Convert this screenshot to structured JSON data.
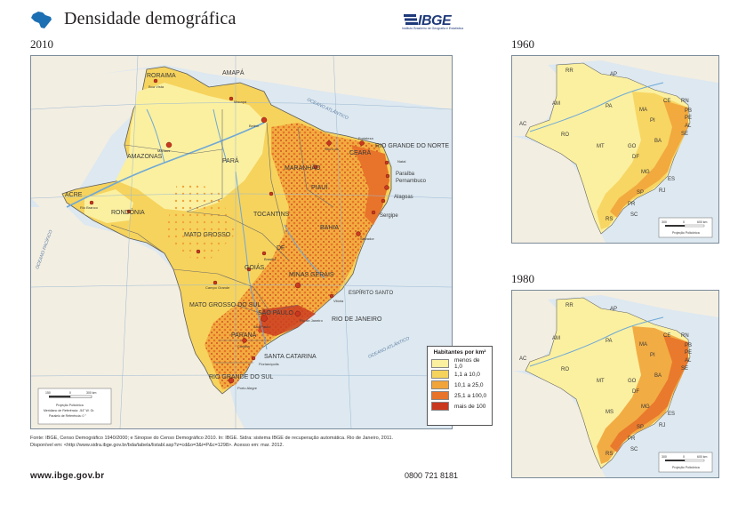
{
  "header": {
    "title": "Densidade demográfica",
    "logo_text": "IBGE",
    "logo_subtitle": "Instituto Brasileiro de Geografia e Estatística"
  },
  "main_map": {
    "year": "2010",
    "state_labels": [
      "RORAIMA",
      "AMAPÁ",
      "AMAZONAS",
      "PARÁ",
      "MARANHÃO",
      "CEARÁ",
      "RIO GRANDE DO NORTE",
      "Paraíba",
      "Pernambuco",
      "Alagoas",
      "Sergipe",
      "PIAUÍ",
      "ACRE",
      "RONDÔNIA",
      "TOCANTINS",
      "BAHIA",
      "MATO GROSSO",
      "GOIÁS",
      "DF",
      "MINAS GERAIS",
      "ESPÍRITO SANTO",
      "MATO GROSSO DO SUL",
      "SÃO PAULO",
      "RIO DE JANEIRO",
      "PARANÁ",
      "SANTA CATARINA",
      "RIO GRANDE DO SUL"
    ],
    "city_labels": [
      "Boa Vista",
      "Macapá",
      "Belém",
      "Manaus",
      "São Luís",
      "Teresina",
      "Fortaleza",
      "Natal",
      "João Pessoa",
      "Recife",
      "Maceió",
      "Aracaju",
      "Salvador",
      "Rio Branco",
      "Porto Velho",
      "Palmas",
      "Cuiabá",
      "Goiânia",
      "Brasília",
      "Belo Horizonte",
      "Vitória",
      "Campo Grande",
      "São Paulo",
      "Rio de Janeiro",
      "Curitiba",
      "Florianópolis",
      "Porto Alegre"
    ],
    "ocean_labels": [
      "OCEANO ATLÂNTICO",
      "OCEANO PACÍFICO",
      "OCEANO ATLÂNTICO"
    ],
    "scale_note": [
      "Projeção Policônica",
      "Meridiano de Referência: -54° W. Gr.",
      "Paralelo de Referência: 0 °"
    ],
    "scale_ticks": [
      "150",
      "0",
      "300 km"
    ]
  },
  "legend": {
    "title": "Habitantes por km²",
    "items": [
      {
        "label": "menos de 1,0",
        "color": "#fbf0a0"
      },
      {
        "label": "1,1 a 10,0",
        "color": "#f6d35c"
      },
      {
        "label": "10,1 a 25,0",
        "color": "#f1a43a"
      },
      {
        "label": "25,1 a 100,0",
        "color": "#e8732a"
      },
      {
        "label": "mais de 100",
        "color": "#c9381f"
      }
    ]
  },
  "map_1960": {
    "year": "1960",
    "labels": [
      "RR",
      "AP",
      "AM",
      "PA",
      "MA",
      "CE",
      "RN",
      "PB",
      "PE",
      "AL",
      "SE",
      "PI",
      "AC",
      "RO",
      "MT",
      "GO",
      "BA",
      "DF",
      "MG",
      "ES",
      "RJ",
      "SP",
      "PR",
      "SC",
      "RS"
    ],
    "scale_ticks": [
      "300",
      "0",
      "600 km"
    ],
    "projection": "Projeção Policônica"
  },
  "map_1980": {
    "year": "1980",
    "labels": [
      "RR",
      "AP",
      "AM",
      "PA",
      "MA",
      "CE",
      "RN",
      "PB",
      "PE",
      "AL",
      "SE",
      "PI",
      "AC",
      "RO",
      "MT",
      "GO",
      "BA",
      "DF",
      "MG",
      "ES",
      "RJ",
      "SP",
      "PR",
      "SC",
      "RS",
      "MS"
    ],
    "scale_ticks": [
      "300",
      "0",
      "600 km"
    ],
    "projection": "Projeção Policônica"
  },
  "footer": {
    "source_line1": "Fonte: IBGE, Censo Demográfico 1940/2000; e Sinopse do Censo Demográfico 2010. In: IBGE. Sidra: sistema IBGE de recuperação automática. Rio de Janeiro, 2011.",
    "source_line2": "Disponível em: <http://www.sidra.ibge.gov.br/bda/tabela/listabl.asp?z=cd&o=3&i=P&c=1298>. Acesso em: mar. 2012.",
    "website": "www.ibge.gov.br",
    "phone": "0800 721 8181"
  }
}
